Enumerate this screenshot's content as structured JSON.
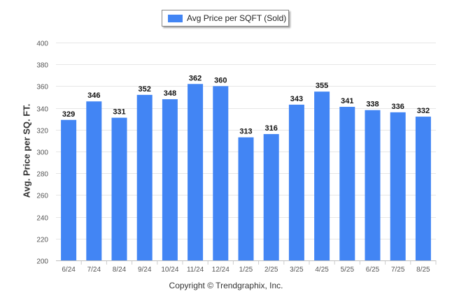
{
  "chart_data": {
    "type": "bar",
    "categories": [
      "6/24",
      "7/24",
      "8/24",
      "9/24",
      "10/24",
      "11/24",
      "12/24",
      "1/25",
      "2/25",
      "3/25",
      "4/25",
      "5/25",
      "6/25",
      "7/25",
      "8/25"
    ],
    "series": [
      {
        "name": "Avg Price per SQFT (Sold)",
        "values": [
          329,
          346,
          331,
          352,
          348,
          362,
          360,
          313,
          316,
          343,
          355,
          341,
          338,
          336,
          332
        ]
      }
    ],
    "ylabel": "Avg. Price per SQ. FT.",
    "xlabel": "",
    "ylim": [
      200,
      400
    ],
    "yticks": [
      200,
      220,
      240,
      260,
      280,
      300,
      320,
      340,
      360,
      380,
      400
    ],
    "grid": true,
    "legend": "top-center",
    "bar_color": "#4285f4",
    "credit": "Copyright © Trendgraphix, Inc."
  }
}
